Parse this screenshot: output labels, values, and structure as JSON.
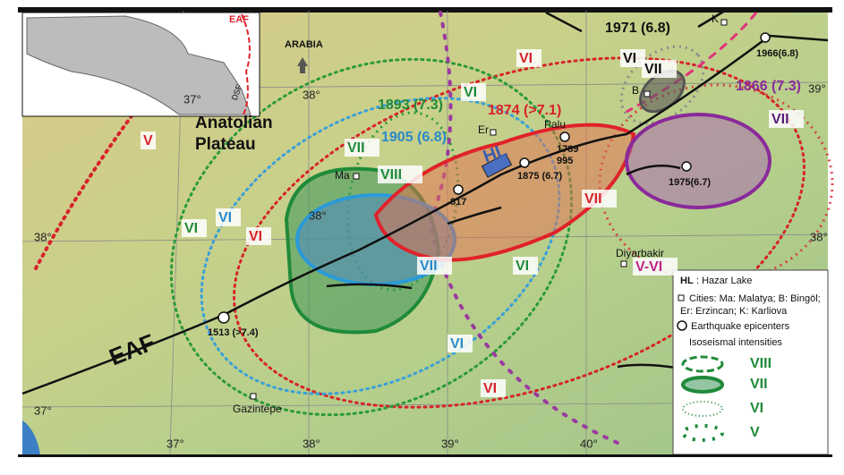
{
  "inset": {
    "fault": "EAF",
    "region": "ARABIA",
    "other_fault": "DSF"
  },
  "graticule": [
    "37°",
    "38°",
    "39°",
    "38°",
    "38°",
    "38°",
    "37°",
    "37°",
    "38°",
    "39°",
    "40°"
  ],
  "region": [
    "Anatolian",
    "Plateau"
  ],
  "fault": "EAF",
  "events": [
    "1971 (6.8)",
    "1866 (7.3)",
    "1874 (>7.1)",
    "1893 (7.3)",
    "1905 (6.8)"
  ],
  "intensities": [
    "V",
    "VI",
    "VI",
    "VII",
    "VII",
    "VI",
    "VII",
    "VIII",
    "VI",
    "VI",
    "VI",
    "VII",
    "VI",
    "VII",
    "VI",
    "VI",
    "V-VI"
  ],
  "cities": [
    "Ma",
    "Er",
    "Palu",
    "B",
    "K",
    "Diyarbakir",
    "Gazintepe",
    "HL"
  ],
  "epicenters": [
    "1789",
    "995",
    "1875 (6.7)",
    "817",
    "1513 (>7.4)",
    "1966(6.8)",
    "1975(6.7)"
  ],
  "legend": {
    "hl_key": "HL",
    "hl_text": ": Hazar Lake",
    "cities": "Cities: Ma: Malatya; B: Bingöl;",
    "cities_2": "Er: Erzincan; K: Karliova",
    "epicenters": "Earthquake epicenters",
    "isoseismal": "Isoseismal intensities",
    "levels": [
      "VIII",
      "VII",
      "VI",
      "V"
    ]
  }
}
